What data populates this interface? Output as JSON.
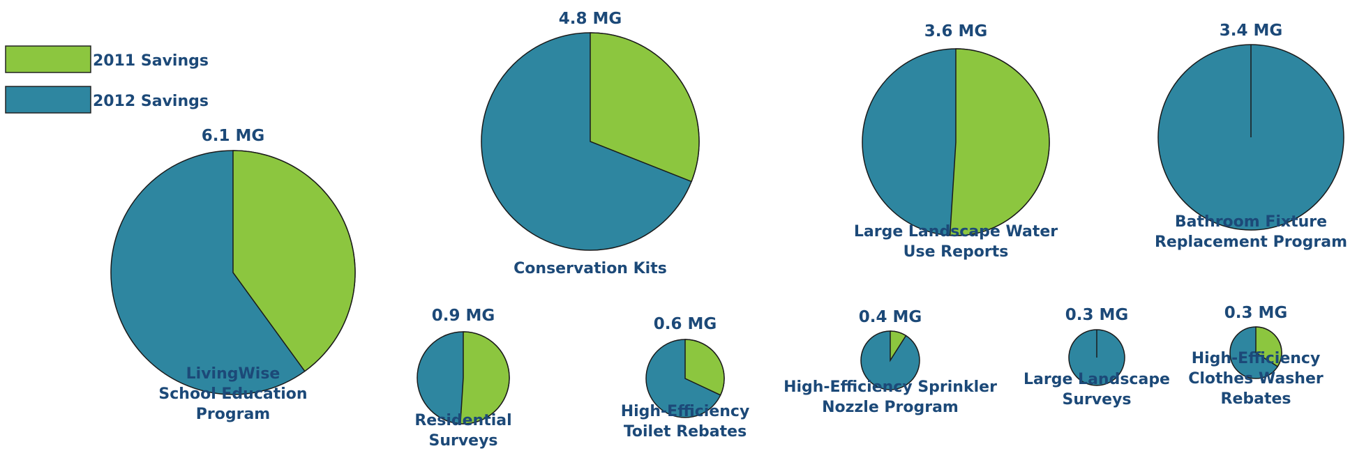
{
  "legend": {
    "items": [
      {
        "label": "2011 Savings",
        "color": "#8cc63f"
      },
      {
        "label": "2012 Savings",
        "color": "#2e86a0"
      }
    ]
  },
  "chart_data": {
    "type": "pie",
    "unit": "MG",
    "series_names": [
      "2011 Savings",
      "2012 Savings"
    ],
    "colors": {
      "2011 Savings": "#8cc63f",
      "2012 Savings": "#2e86a0"
    },
    "pies": [
      {
        "name": "LivingWise School Education Program",
        "label_lines": [
          "LivingWise",
          "School Education",
          "Program"
        ],
        "total_label": "6.1 MG",
        "total": 6.1,
        "fraction_2011": 0.4,
        "values": [
          2.44,
          3.66
        ]
      },
      {
        "name": "Conservation Kits",
        "label_lines": [
          "Conservation Kits"
        ],
        "total_label": "4.8 MG",
        "total": 4.8,
        "fraction_2011": 0.31,
        "values": [
          1.49,
          3.31
        ]
      },
      {
        "name": "Large Landscape Water Use Reports",
        "label_lines": [
          "Large Landscape Water",
          "Use Reports"
        ],
        "total_label": "3.6 MG",
        "total": 3.6,
        "fraction_2011": 0.51,
        "values": [
          1.84,
          1.76
        ]
      },
      {
        "name": "Bathroom Fixture Replacement Program",
        "label_lines": [
          "Bathroom Fixture",
          "Replacement Program"
        ],
        "total_label": "3.4 MG",
        "total": 3.4,
        "fraction_2011": 0.0,
        "values": [
          0.0,
          3.4
        ]
      },
      {
        "name": "Residential Surveys",
        "label_lines": [
          "Residential",
          "Surveys"
        ],
        "total_label": "0.9 MG",
        "total": 0.9,
        "fraction_2011": 0.51,
        "values": [
          0.46,
          0.44
        ]
      },
      {
        "name": "High-Efficiency Toilet Rebates",
        "label_lines": [
          "High-Efficiency",
          "Toilet Rebates"
        ],
        "total_label": "0.6 MG",
        "total": 0.6,
        "fraction_2011": 0.32,
        "values": [
          0.19,
          0.41
        ]
      },
      {
        "name": "High-Efficiency Sprinkler Nozzle Program",
        "label_lines": [
          "High-Efficiency Sprinkler",
          "Nozzle Program"
        ],
        "total_label": "0.4 MG",
        "total": 0.4,
        "fraction_2011": 0.09,
        "values": [
          0.04,
          0.36
        ]
      },
      {
        "name": "Large Landscape Surveys",
        "label_lines": [
          "Large Landscape",
          "Surveys"
        ],
        "total_label": "0.3 MG",
        "total": 0.3,
        "fraction_2011": 0.0,
        "values": [
          0.0,
          0.3
        ]
      },
      {
        "name": "High-Efficiency Clothes Washer Rebates",
        "label_lines": [
          "High-Efficiency",
          "Clothes Washer",
          "Rebates"
        ],
        "total_label": "0.3 MG",
        "total": 0.3,
        "fraction_2011": 0.34,
        "values": [
          0.1,
          0.2
        ]
      }
    ]
  }
}
